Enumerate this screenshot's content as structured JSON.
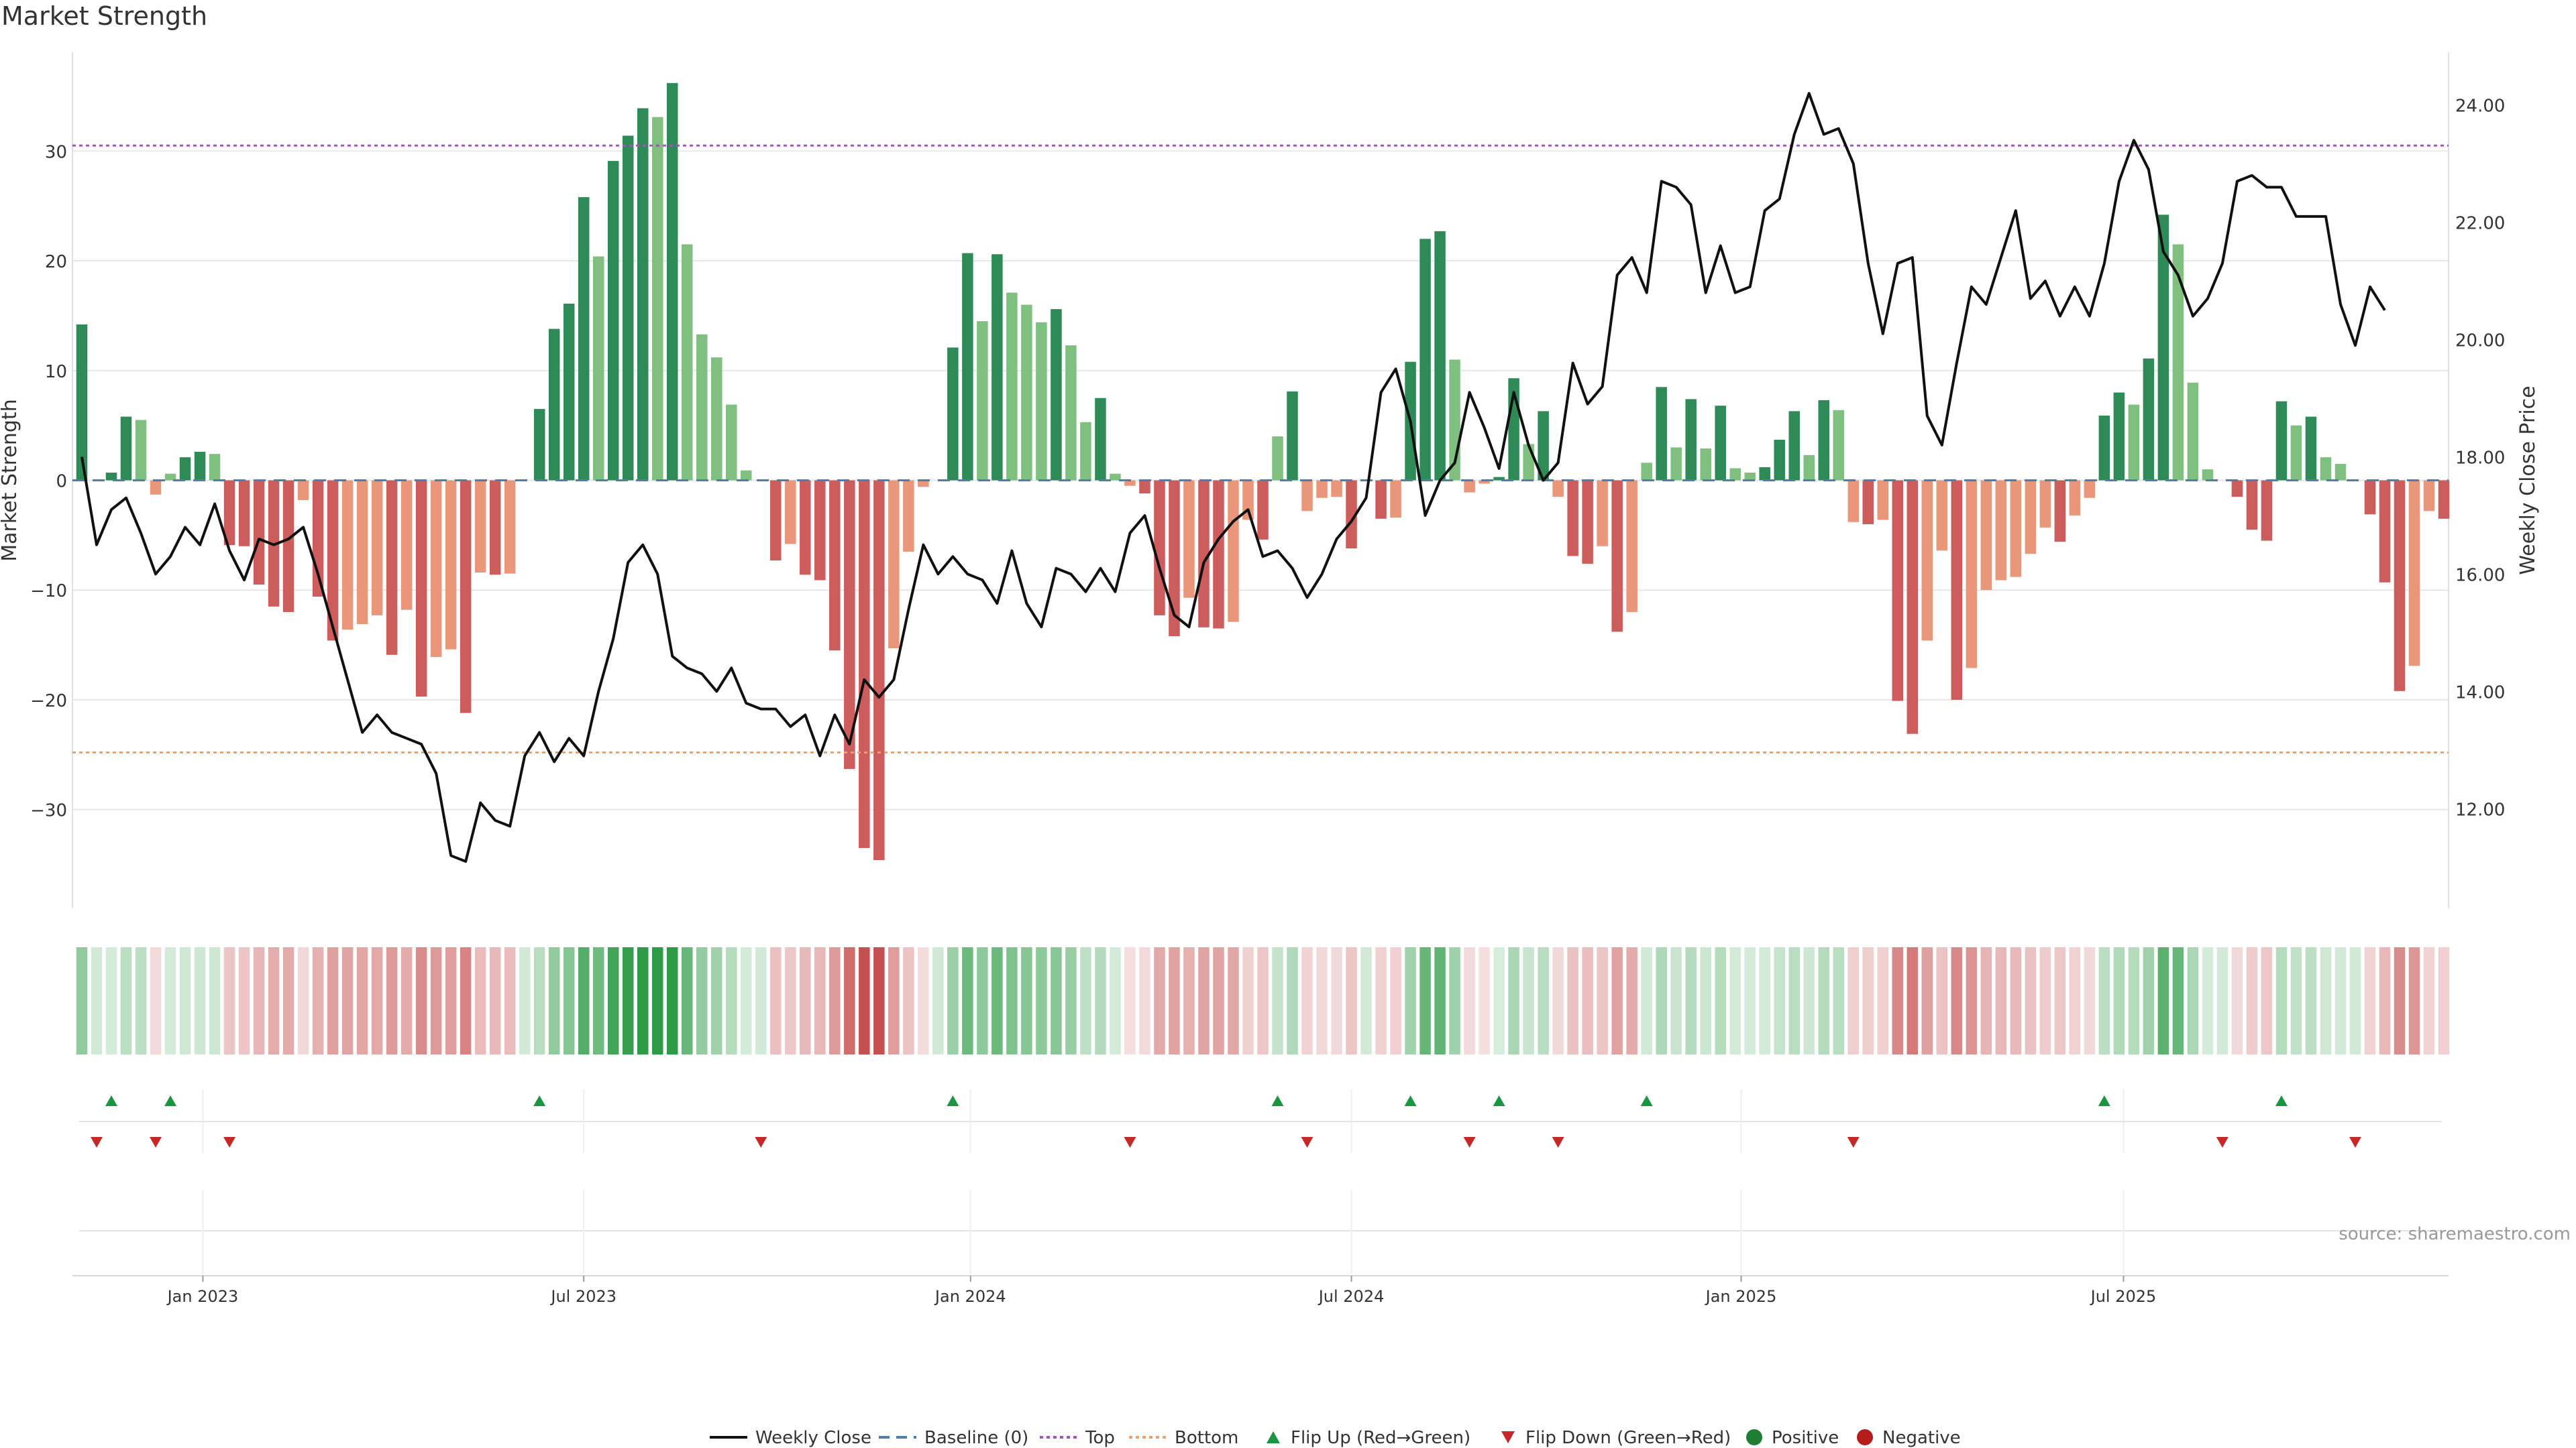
{
  "chart_data": {
    "type": "bar",
    "title": "Market Strength",
    "ylabel_left": "Market Strength",
    "ylabel_right": "Weekly Close Price",
    "ylim_left": [
      -39,
      39
    ],
    "ylim_right": [
      10.3,
      24.9
    ],
    "yticks_left": [
      -30,
      -20,
      -10,
      0,
      10,
      20,
      30
    ],
    "yticks_left_labels": [
      "−30",
      "−20",
      "−10",
      "0",
      "10",
      "20",
      "30"
    ],
    "yticks_right": [
      12,
      14,
      16,
      18,
      20,
      22,
      24
    ],
    "yticks_right_labels": [
      "12.00",
      "14.00",
      "16.00",
      "18.00",
      "20.00",
      "22.00",
      "24.00"
    ],
    "x_tick_labels": [
      "Jan 2023",
      "Jul 2023",
      "Jan 2024",
      "Jul 2024",
      "Jan 2025",
      "Jul 2025"
    ],
    "x_tick_weeks": [
      8.2,
      34,
      60.2,
      86,
      112.4,
      138.3
    ],
    "top_level": 30.5,
    "bottom_level": -24.8,
    "strength": [
      14.2,
      0,
      0.7,
      5.8,
      5.5,
      -1.3,
      0.6,
      2.1,
      2.6,
      2.4,
      -5.9,
      -6.0,
      -9.5,
      -11.5,
      -12.0,
      -1.8,
      -10.6,
      -14.6,
      -13.6,
      -13.1,
      -12.3,
      -15.9,
      -11.8,
      -19.7,
      -16.1,
      -15.4,
      -21.2,
      -8.4,
      -8.6,
      -8.5,
      0,
      6.5,
      13.8,
      16.1,
      25.8,
      20.4,
      29.1,
      31.4,
      33.9,
      33.1,
      36.2,
      21.5,
      13.3,
      11.2,
      6.9,
      0.9,
      0,
      -7.3,
      -5.8,
      -8.6,
      -9.1,
      -15.5,
      -26.3,
      -33.5,
      -34.6,
      -15.3,
      -6.5,
      -0.6,
      0,
      12.1,
      20.7,
      14.5,
      20.6,
      17.1,
      16.0,
      14.4,
      15.6,
      12.3,
      5.3,
      7.5,
      0.6,
      -0.5,
      -1.2,
      -12.3,
      -14.2,
      -10.7,
      -13.4,
      -13.5,
      -12.9,
      -3.6,
      -5.4,
      4.0,
      8.1,
      -2.8,
      -1.6,
      -1.5,
      -6.2,
      0,
      -3.5,
      -3.4,
      10.8,
      22.0,
      22.7,
      11.0,
      -1.1,
      -0.3,
      0.3,
      9.3,
      3.3,
      6.3,
      -1.5,
      -6.9,
      -7.6,
      -6.0,
      -13.8,
      -12.0,
      1.6,
      8.5,
      3.0,
      7.4,
      2.9,
      6.8,
      1.1,
      0.7,
      1.2,
      3.7,
      6.3,
      2.3,
      7.3,
      6.4,
      -3.8,
      -4.0,
      -3.6,
      -20.1,
      -23.1,
      -14.6,
      -6.4,
      -20.0,
      -17.1,
      -10.0,
      -9.1,
      -8.8,
      -6.7,
      -4.3,
      -5.6,
      -3.2,
      -1.6,
      5.9,
      8.0,
      6.9,
      11.1,
      24.2,
      21.5,
      8.9,
      1.0,
      0,
      -1.5,
      -4.5,
      -5.5,
      7.2,
      5.0,
      5.8,
      2.1,
      1.5,
      0,
      -3.1,
      -9.3,
      -19.2,
      -16.9,
      -2.8,
      -3.5
    ],
    "close": [
      18.0,
      16.5,
      17.1,
      17.3,
      16.7,
      16.0,
      16.3,
      16.8,
      16.5,
      17.2,
      16.4,
      15.9,
      16.6,
      16.5,
      16.6,
      16.8,
      16.0,
      15.1,
      14.2,
      13.3,
      13.6,
      13.3,
      13.2,
      13.1,
      12.6,
      11.2,
      11.1,
      12.1,
      11.8,
      11.7,
      12.9,
      13.3,
      12.8,
      13.2,
      12.9,
      14.0,
      14.9,
      16.2,
      16.5,
      16.0,
      14.6,
      14.4,
      14.3,
      14.0,
      14.4,
      13.8,
      13.7,
      13.7,
      13.4,
      13.6,
      12.9,
      13.6,
      13.1,
      14.2,
      13.9,
      14.2,
      15.4,
      16.5,
      16.0,
      16.3,
      16.0,
      15.9,
      15.5,
      16.4,
      15.5,
      15.1,
      16.1,
      16.0,
      15.7,
      16.1,
      15.7,
      16.7,
      17.0,
      16.1,
      15.3,
      15.1,
      16.2,
      16.6,
      16.9,
      17.1,
      16.3,
      16.4,
      16.1,
      15.6,
      16.0,
      16.6,
      16.9,
      17.3,
      19.1,
      19.5,
      18.6,
      17.0,
      17.6,
      17.9,
      19.1,
      18.5,
      17.8,
      19.1,
      18.2,
      17.6,
      17.9,
      19.6,
      18.9,
      19.2,
      21.1,
      21.4,
      20.8,
      22.7,
      22.6,
      22.3,
      20.8,
      21.6,
      20.8,
      20.9,
      22.2,
      22.4,
      23.5,
      24.2,
      23.5,
      23.6,
      23.0,
      21.3,
      20.1,
      21.3,
      21.4,
      18.7,
      18.2,
      19.6,
      20.9,
      20.6,
      21.4,
      22.2,
      20.7,
      21.0,
      20.4,
      20.9,
      20.4,
      21.3,
      22.7,
      23.4,
      22.9,
      21.5,
      21.1,
      20.4,
      20.7,
      21.3,
      22.7,
      22.8,
      22.6,
      22.6,
      22.1,
      22.1,
      22.1,
      20.6,
      19.9,
      20.9,
      20.5
    ]
  },
  "labels": {
    "title": "Market Strength",
    "source": "source: sharemaestro.com"
  },
  "legend": [
    {
      "label": "Weekly Close",
      "kind": "line"
    },
    {
      "label": "Baseline (0)",
      "kind": "dash"
    },
    {
      "label": "Top",
      "kind": "dot-purple"
    },
    {
      "label": "Bottom",
      "kind": "dot-orange"
    },
    {
      "label": "Flip Up (Red→Green)",
      "kind": "tri-up"
    },
    {
      "label": "Flip Down (Green→Red)",
      "kind": "tri-down"
    },
    {
      "label": "Positive",
      "kind": "dot-green"
    },
    {
      "label": "Negative",
      "kind": "dot-red"
    }
  ],
  "colors": {
    "pos_strong": "#2e8b57",
    "pos_light": "#7fbf7f",
    "neg_strong": "#cd5c5c",
    "neg_light": "#e9967a",
    "price_line": "#111111",
    "baseline": "#4a7fb0",
    "top": "#9b59b6",
    "bottom": "#f0a060",
    "flip_up": "#1a9641",
    "flip_down": "#c62828",
    "grid": "#e6e6e6"
  }
}
